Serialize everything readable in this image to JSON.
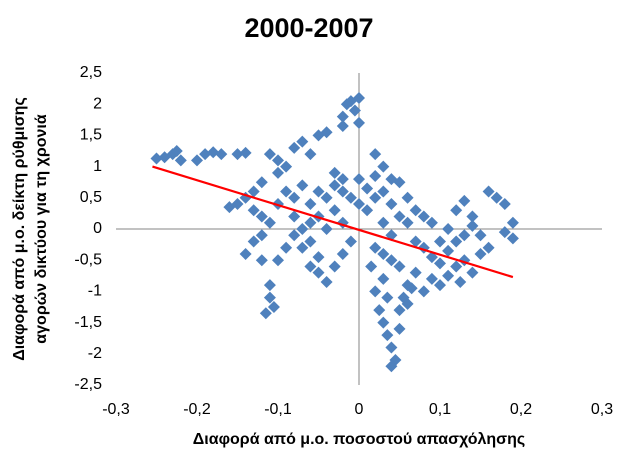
{
  "chart_data": {
    "type": "scatter",
    "title": "2000-2007",
    "xlabel": "Διαφορά από μ.ο. ποσοστού απασχόλησης",
    "ylabel": [
      "Διαφορά από μ.ο. δείκτη ρύθμισης",
      "αγορών δικτύου για τη χρονιά"
    ],
    "color": "#4f81bd",
    "x": [
      -0.25,
      -0.24,
      -0.23,
      -0.225,
      -0.22,
      -0.2,
      -0.19,
      -0.18,
      -0.17,
      -0.15,
      -0.14,
      -0.16,
      -0.15,
      -0.14,
      -0.13,
      -0.12,
      -0.13,
      -0.12,
      -0.11,
      -0.1,
      -0.1,
      -0.09,
      -0.08,
      -0.07,
      -0.06,
      -0.05,
      -0.04,
      -0.14,
      -0.13,
      -0.12,
      -0.11,
      -0.11,
      -0.115,
      -0.105,
      -0.1,
      -0.09,
      -0.08,
      -0.07,
      -0.06,
      -0.05,
      -0.04,
      -0.03,
      -0.02,
      -0.01,
      -0.02,
      -0.015,
      -0.01,
      0,
      -0.005,
      -0.02,
      0,
      0.02,
      0.03,
      0.04,
      0.05,
      0.06,
      0.07,
      0.08,
      0.09,
      0.1,
      0.11,
      0.12,
      0.13,
      0.14,
      0.16,
      0.17,
      0.18,
      0.19,
      0.19,
      0.18,
      0.15,
      0.13,
      0.12,
      0.11,
      0.1,
      0.09,
      0.08,
      0.07,
      0.06,
      0.05,
      0.04,
      0.03,
      0.02,
      0.015,
      0.02,
      0.025,
      0.03,
      0.035,
      0.04,
      0.045,
      0.04,
      0.05,
      0.05,
      0.055,
      0.06,
      0.065,
      0.035,
      0.03,
      0.14,
      0.15,
      0.16,
      0.125,
      -0.09,
      -0.08,
      -0.07,
      -0.06,
      -0.05,
      -0.04,
      -0.03,
      -0.02,
      -0.01,
      0,
      0.01,
      0.02,
      0.03,
      0.04,
      -0.08,
      -0.07,
      -0.06,
      -0.05,
      -0.04,
      -0.03,
      -0.02,
      -0.1,
      -0.11,
      -0.12,
      -0.03,
      -0.02,
      0,
      0.01,
      0.02,
      0.05,
      0.06,
      0.07,
      0.08,
      0.09,
      0.1,
      0.11,
      0.12,
      0.13,
      0.14,
      -0.06,
      -0.05,
      0.03,
      0.04
    ],
    "values": [
      1.13,
      1.15,
      1.2,
      1.25,
      1.1,
      1.1,
      1.2,
      1.23,
      1.2,
      1.2,
      1.22,
      0.35,
      0.4,
      0.5,
      0.3,
      0.2,
      0.6,
      0.75,
      1.2,
      1.1,
      0.9,
      1.0,
      1.3,
      1.4,
      1.2,
      1.5,
      1.55,
      -0.4,
      -0.2,
      -0.5,
      -0.9,
      -1.1,
      -1.35,
      -1.25,
      -0.5,
      -0.3,
      -0.1,
      -0.3,
      -0.6,
      -0.7,
      -0.85,
      -0.6,
      -0.4,
      -0.2,
      1.8,
      2.0,
      2.05,
      2.1,
      1.9,
      1.65,
      1.7,
      1.2,
      1.0,
      0.8,
      0.75,
      0.5,
      0.3,
      0.2,
      0.1,
      -0.2,
      0,
      0.3,
      0.45,
      0.2,
      0.6,
      0.5,
      0.4,
      0.1,
      -0.15,
      -0.05,
      -0.1,
      -0.5,
      -0.6,
      -0.75,
      -0.9,
      -0.8,
      -1.0,
      -0.7,
      -0.9,
      -0.6,
      -0.5,
      -0.4,
      -0.3,
      -0.6,
      -1.0,
      -1.3,
      -1.5,
      -1.7,
      -1.9,
      -2.1,
      -2.2,
      -1.6,
      -1.3,
      -1.1,
      -1.2,
      -0.95,
      -1.1,
      -0.8,
      -0.7,
      -0.4,
      -0.3,
      -0.85,
      0.6,
      0.5,
      0.7,
      0.4,
      0.6,
      0.5,
      0.7,
      0.6,
      0.5,
      0.4,
      0.3,
      0.5,
      0.6,
      0.4,
      0.2,
      0,
      0.1,
      0.2,
      0,
      0.3,
      0.1,
      0.4,
      0.1,
      -0.1,
      0.9,
      0.8,
      0.8,
      0.65,
      0.85,
      0.2,
      0.1,
      -0.2,
      -0.3,
      -0.45,
      -0.55,
      -0.35,
      -0.2,
      -0.1,
      0.05,
      -0.2,
      -0.45,
      0.1,
      -0.1
    ],
    "trendline": {
      "x": [
        -0.255,
        0.19
      ],
      "y": [
        1.0,
        -0.77
      ],
      "color": "#ff0000"
    },
    "xlim": [
      -0.3,
      0.3
    ],
    "xticks": [
      {
        "value": -0.3,
        "label": "-0,3"
      },
      {
        "value": -0.2,
        "label": "-0,2"
      },
      {
        "value": -0.1,
        "label": "-0,1"
      },
      0,
      {
        "value": 0.1,
        "label": "0,1"
      },
      {
        "value": 0.2,
        "label": "0,2"
      },
      {
        "value": 0.3,
        "label": "0,3"
      }
    ],
    "ylim": [
      -2.5,
      2.5
    ],
    "yticks": [
      {
        "value": -2.5,
        "label": "-2,5"
      },
      -2,
      {
        "value": -1.5,
        "label": "-1,5"
      },
      -1,
      {
        "value": -0.5,
        "label": "-0,5"
      },
      0,
      {
        "value": 0.5,
        "label": "0,5"
      },
      1,
      {
        "value": 1.5,
        "label": "1,5"
      },
      2,
      {
        "value": 2.5,
        "label": "2,5"
      }
    ]
  }
}
